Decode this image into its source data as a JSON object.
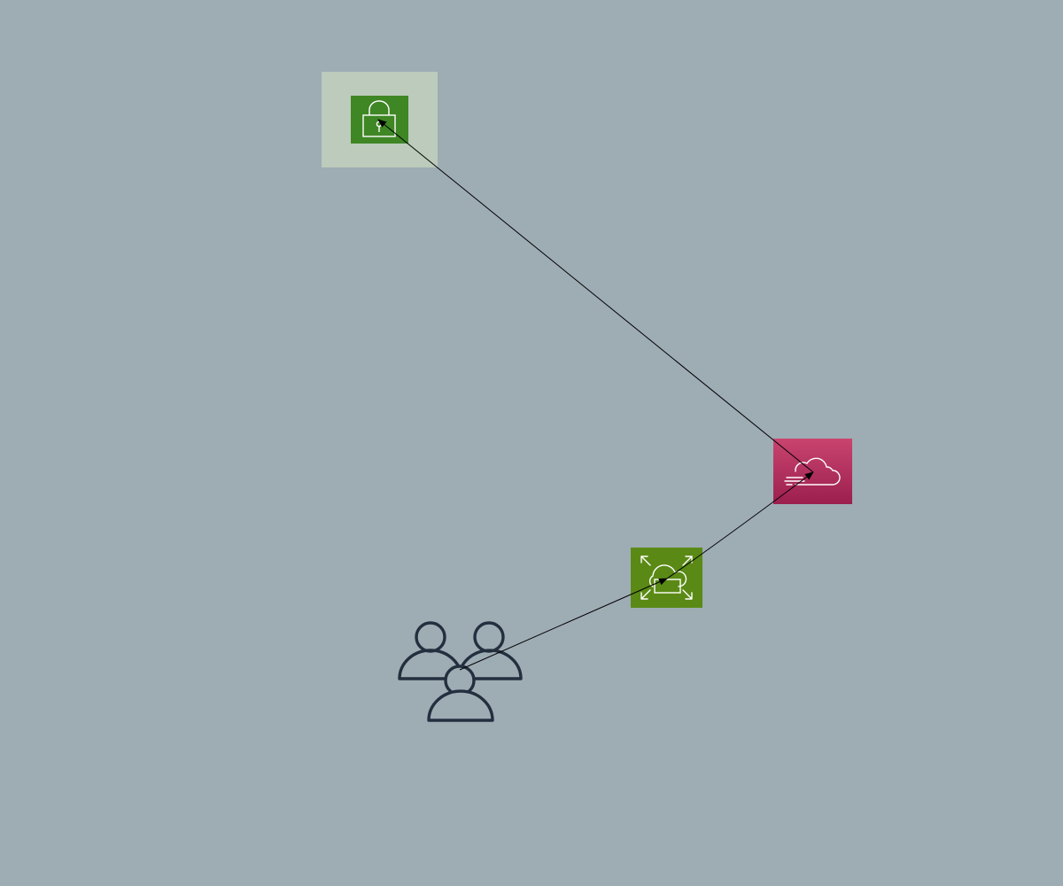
{
  "diagram": {
    "background_color": "#9eacb4",
    "nodes": [
      {
        "id": "security-group",
        "icon": "lock-icon",
        "group_fill": "#bccbbb",
        "tile_fill": "#3f8624",
        "glyph_color": "#ffffff"
      },
      {
        "id": "cloud-service",
        "icon": "cloud-speed-icon",
        "tile_fill_top": "#c9446f",
        "tile_fill_bottom": "#9b1f4e",
        "glyph_color": "#ffffff"
      },
      {
        "id": "auto-scaling-service",
        "icon": "cloud-auto-scaling-icon",
        "tile_fill": "#5a8a15",
        "glyph_color": "#ffffff"
      },
      {
        "id": "users",
        "icon": "users-group-icon",
        "glyph_color": "#232f3e"
      }
    ],
    "edges": [
      {
        "from": "users",
        "to": "auto-scaling-service",
        "arrow": "end"
      },
      {
        "from": "auto-scaling-service",
        "to": "cloud-service",
        "arrow": "end"
      },
      {
        "from": "cloud-service",
        "to": "security-group",
        "arrow": "end"
      }
    ],
    "edge_color": "#000000"
  }
}
